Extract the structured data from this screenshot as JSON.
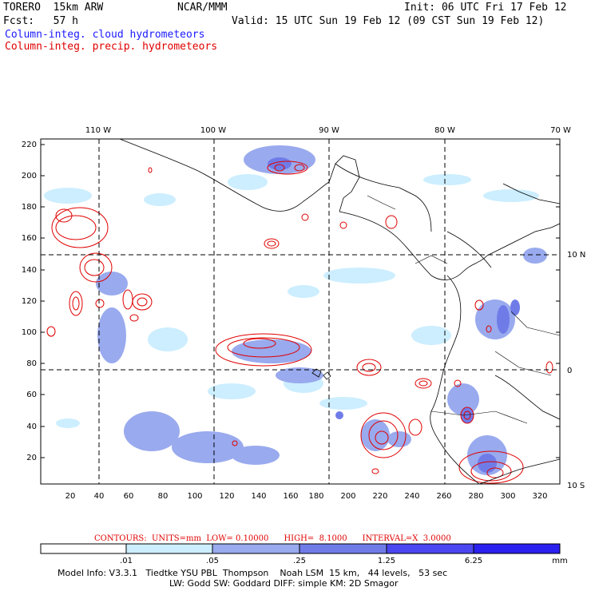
{
  "header": {
    "model": "TORERO  15km ARW",
    "center": "NCAR/MMM",
    "init": "Init: 06 UTC Fri 17 Feb 12",
    "fcst": "Fcst:   57 h",
    "valid": "Valid: 15 UTC Sun 19 Feb 12 (09 CST Sun 19 Feb 12)",
    "field1": "Column-integ. cloud hydrometeors",
    "field2": "Column-integ. precip. hydrometeors"
  },
  "map": {
    "lon_labels": [
      "110 W",
      "100 W",
      "90 W",
      "80 W",
      "70 W"
    ],
    "lat_labels": [
      "10 N",
      "0",
      "10 S"
    ],
    "y_ticks": [
      "220",
      "200",
      "180",
      "160",
      "140",
      "120",
      "100",
      "80",
      "60",
      "40",
      "20"
    ],
    "x_ticks": [
      "20",
      "40",
      "60",
      "80",
      "100",
      "120",
      "140",
      "160",
      "180",
      "200",
      "220",
      "240",
      "260",
      "280",
      "300",
      "320"
    ],
    "grid_x": [
      40,
      113.5,
      187,
      260
    ],
    "grid_y": [
      150,
      76
    ]
  },
  "contours": {
    "text": "CONTOURS:  UNITS=mm  LOW= 0.10000      HIGH=  8.1000      INTERVAL=X  3.0000"
  },
  "colorbar": {
    "labels": [
      ".01",
      ".05",
      ".25",
      "1.25",
      "6.25"
    ],
    "unit": "mm",
    "colors": [
      "#ffffff",
      "#cceeff",
      "#99aaee",
      "#6f7ce8",
      "#4a46f0",
      "#2a20f0",
      "#1a1adf"
    ]
  },
  "footer": {
    "line1": "Model Info: V3.3.1   Tiedtke YSU PBL  Thompson    Noah LSM  15 km,   44 levels,   53 sec",
    "line2": "LW: Godd SW: Goddard DIFF: simple KM: 2D Smagor"
  }
}
